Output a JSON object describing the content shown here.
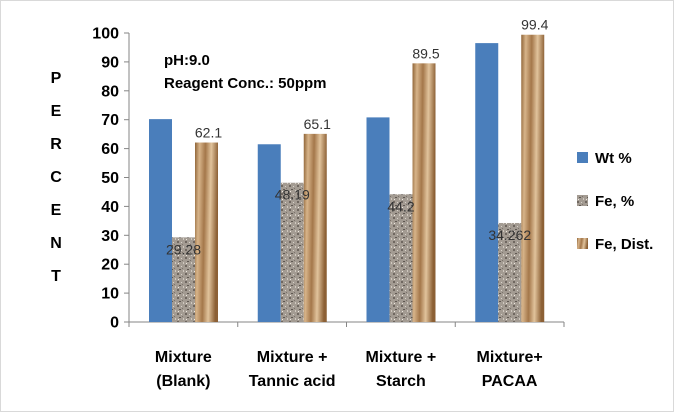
{
  "chart_data": {
    "type": "bar",
    "title": "",
    "xlabel": "",
    "ylabel": "PERCENT",
    "ylim": [
      0,
      100
    ],
    "y_ticks": [
      0,
      10,
      20,
      30,
      40,
      50,
      60,
      70,
      80,
      90,
      100
    ],
    "grid": false,
    "legend_position": "right",
    "categories": [
      [
        "Mixture",
        "(Blank)"
      ],
      [
        "Mixture +",
        "Tannic acid"
      ],
      [
        "Mixture +",
        "Starch"
      ],
      [
        "Mixture+",
        "PACAA"
      ]
    ],
    "series": [
      {
        "name": "Wt %",
        "values": [
          70.2,
          61.5,
          70.8,
          96.5
        ],
        "labels": [],
        "color": "#4a7ebb"
      },
      {
        "name": "Fe, %",
        "values": [
          29.28,
          48.19,
          44.2,
          34.262
        ],
        "labels": [
          "29.28",
          "48.19",
          "44.2",
          "34.262"
        ],
        "color": "#9a9188"
      },
      {
        "name": "Fe, Dist.",
        "values": [
          62.1,
          65.1,
          89.5,
          99.4
        ],
        "labels": [
          "62.1",
          "65.1",
          "89.5",
          "99.4"
        ],
        "color": "#b8895a"
      }
    ],
    "annotations": [
      "pH:9.0",
      "Reagent Conc.: 50ppm"
    ]
  }
}
